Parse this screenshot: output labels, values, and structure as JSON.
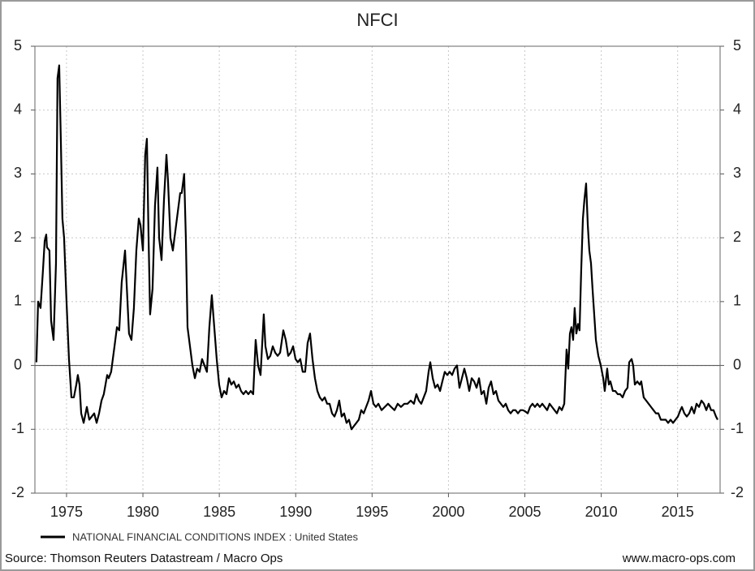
{
  "chart_data": {
    "type": "line",
    "title": "NFCI",
    "x": [
      1973.03,
      1973.14,
      1973.3,
      1973.46,
      1973.57,
      1973.67,
      1973.72,
      1973.88,
      1973.99,
      1974.15,
      1974.31,
      1974.41,
      1974.52,
      1974.63,
      1974.73,
      1974.84,
      1975.0,
      1975.16,
      1975.32,
      1975.48,
      1975.64,
      1975.74,
      1975.85,
      1975.96,
      1976.12,
      1976.33,
      1976.49,
      1976.65,
      1976.81,
      1976.97,
      1977.13,
      1977.29,
      1977.44,
      1977.66,
      1977.76,
      1977.92,
      1978.14,
      1978.3,
      1978.45,
      1978.61,
      1978.83,
      1978.99,
      1979.09,
      1979.25,
      1979.41,
      1979.57,
      1979.73,
      1979.84,
      1980.0,
      1980.15,
      1980.26,
      1980.37,
      1980.47,
      1980.63,
      1980.79,
      1980.95,
      1981.06,
      1981.22,
      1981.38,
      1981.54,
      1981.64,
      1981.8,
      1981.96,
      1982.12,
      1982.28,
      1982.44,
      1982.54,
      1982.7,
      1982.81,
      1982.92,
      1983.08,
      1983.24,
      1983.4,
      1983.55,
      1983.71,
      1983.87,
      1984.03,
      1984.19,
      1984.35,
      1984.51,
      1984.67,
      1984.83,
      1984.99,
      1985.15,
      1985.31,
      1985.47,
      1985.63,
      1985.79,
      1985.95,
      1986.11,
      1986.27,
      1986.42,
      1986.58,
      1986.74,
      1986.9,
      1987.06,
      1987.22,
      1987.38,
      1987.54,
      1987.7,
      1987.81,
      1987.91,
      1988.02,
      1988.18,
      1988.34,
      1988.5,
      1988.66,
      1988.82,
      1988.98,
      1989.19,
      1989.35,
      1989.51,
      1989.67,
      1989.83,
      1989.99,
      1990.14,
      1990.3,
      1990.46,
      1990.62,
      1990.78,
      1990.94,
      1991.1,
      1991.26,
      1991.42,
      1991.58,
      1991.74,
      1991.9,
      1992.06,
      1992.22,
      1992.38,
      1992.54,
      1992.7,
      1992.85,
      1993.01,
      1993.17,
      1993.33,
      1993.49,
      1993.65,
      1993.81,
      1993.97,
      1994.13,
      1994.29,
      1994.45,
      1994.61,
      1994.77,
      1994.93,
      1995.09,
      1995.25,
      1995.41,
      1995.62,
      1995.83,
      1996.04,
      1996.25,
      1996.47,
      1996.68,
      1996.89,
      1997.11,
      1997.32,
      1997.53,
      1997.74,
      1997.9,
      1998.06,
      1998.22,
      1998.38,
      1998.54,
      1998.7,
      1998.81,
      1998.97,
      1999.13,
      1999.29,
      1999.45,
      1999.6,
      1999.76,
      1999.92,
      2000.08,
      2000.24,
      2000.4,
      2000.56,
      2000.72,
      2000.88,
      2001.04,
      2001.2,
      2001.36,
      2001.52,
      2001.68,
      2001.84,
      2002.0,
      2002.16,
      2002.32,
      2002.48,
      2002.63,
      2002.79,
      2002.95,
      2003.11,
      2003.27,
      2003.43,
      2003.59,
      2003.75,
      2003.91,
      2004.07,
      2004.23,
      2004.39,
      2004.55,
      2004.71,
      2004.87,
      2005.03,
      2005.19,
      2005.34,
      2005.5,
      2005.66,
      2005.82,
      2005.98,
      2006.14,
      2006.3,
      2006.46,
      2006.62,
      2006.78,
      2006.94,
      2007.1,
      2007.26,
      2007.42,
      2007.58,
      2007.73,
      2007.84,
      2007.95,
      2008.05,
      2008.16,
      2008.26,
      2008.37,
      2008.48,
      2008.58,
      2008.69,
      2008.8,
      2008.9,
      2009.01,
      2009.12,
      2009.22,
      2009.33,
      2009.43,
      2009.54,
      2009.65,
      2009.81,
      2009.97,
      2010.13,
      2010.23,
      2010.39,
      2010.5,
      2010.6,
      2010.76,
      2010.92,
      2011.08,
      2011.24,
      2011.4,
      2011.56,
      2011.72,
      2011.83,
      2011.99,
      2012.09,
      2012.2,
      2012.36,
      2012.52,
      2012.62,
      2012.78,
      2012.94,
      2013.1,
      2013.26,
      2013.42,
      2013.58,
      2013.74,
      2013.9,
      2014.06,
      2014.22,
      2014.38,
      2014.54,
      2014.7,
      2014.86,
      2015.02,
      2015.18,
      2015.28,
      2015.44,
      2015.6,
      2015.76,
      2015.92,
      2016.08,
      2016.24,
      2016.4,
      2016.56,
      2016.72,
      2016.88,
      2017.03,
      2017.19,
      2017.35,
      2017.51,
      2017.62
    ],
    "series": [
      {
        "name": "NATIONAL FINANCIAL CONDITIONS INDEX : United States",
        "color": "#000000",
        "values": [
          0.05,
          1.0,
          0.9,
          1.5,
          1.95,
          2.05,
          1.85,
          1.8,
          0.7,
          0.4,
          1.6,
          4.5,
          4.7,
          3.5,
          2.3,
          2.0,
          1.0,
          0.1,
          -0.5,
          -0.5,
          -0.3,
          -0.15,
          -0.3,
          -0.75,
          -0.9,
          -0.65,
          -0.85,
          -0.8,
          -0.75,
          -0.9,
          -0.75,
          -0.55,
          -0.45,
          -0.15,
          -0.2,
          -0.1,
          0.3,
          0.6,
          0.55,
          1.3,
          1.8,
          1.0,
          0.5,
          0.4,
          0.9,
          1.8,
          2.3,
          2.2,
          1.8,
          3.3,
          3.55,
          2.0,
          0.8,
          1.2,
          2.5,
          3.1,
          2.0,
          1.65,
          2.6,
          3.3,
          2.9,
          2.0,
          1.8,
          2.1,
          2.4,
          2.7,
          2.7,
          3.0,
          2.0,
          0.6,
          0.3,
          0.0,
          -0.2,
          -0.05,
          -0.1,
          0.1,
          0.0,
          -0.1,
          0.6,
          1.1,
          0.6,
          0.1,
          -0.3,
          -0.5,
          -0.4,
          -0.45,
          -0.2,
          -0.3,
          -0.25,
          -0.35,
          -0.3,
          -0.4,
          -0.45,
          -0.4,
          -0.45,
          -0.4,
          -0.45,
          0.4,
          0.0,
          -0.15,
          0.35,
          0.8,
          0.3,
          0.1,
          0.15,
          0.3,
          0.2,
          0.15,
          0.2,
          0.55,
          0.4,
          0.15,
          0.2,
          0.3,
          0.1,
          0.05,
          0.1,
          -0.1,
          -0.1,
          0.35,
          0.5,
          0.1,
          -0.2,
          -0.4,
          -0.5,
          -0.55,
          -0.5,
          -0.6,
          -0.6,
          -0.75,
          -0.8,
          -0.7,
          -0.55,
          -0.8,
          -0.75,
          -0.9,
          -0.85,
          -1.0,
          -0.95,
          -0.9,
          -0.85,
          -0.7,
          -0.75,
          -0.65,
          -0.55,
          -0.4,
          -0.6,
          -0.65,
          -0.6,
          -0.7,
          -0.65,
          -0.6,
          -0.65,
          -0.7,
          -0.6,
          -0.65,
          -0.6,
          -0.6,
          -0.55,
          -0.6,
          -0.45,
          -0.55,
          -0.6,
          -0.5,
          -0.4,
          -0.1,
          0.05,
          -0.2,
          -0.35,
          -0.3,
          -0.4,
          -0.25,
          -0.1,
          -0.15,
          -0.1,
          -0.15,
          -0.05,
          0.0,
          -0.35,
          -0.2,
          -0.05,
          -0.2,
          -0.4,
          -0.2,
          -0.25,
          -0.35,
          -0.2,
          -0.45,
          -0.4,
          -0.6,
          -0.35,
          -0.25,
          -0.45,
          -0.4,
          -0.55,
          -0.6,
          -0.65,
          -0.6,
          -0.7,
          -0.75,
          -0.7,
          -0.7,
          -0.75,
          -0.7,
          -0.7,
          -0.72,
          -0.75,
          -0.65,
          -0.6,
          -0.65,
          -0.6,
          -0.65,
          -0.6,
          -0.65,
          -0.7,
          -0.6,
          -0.65,
          -0.7,
          -0.75,
          -0.65,
          -0.7,
          -0.6,
          0.25,
          -0.05,
          0.5,
          0.6,
          0.4,
          0.9,
          0.5,
          0.65,
          0.55,
          1.5,
          2.3,
          2.6,
          2.85,
          2.2,
          1.8,
          1.6,
          1.2,
          0.8,
          0.4,
          0.15,
          0.0,
          -0.2,
          -0.4,
          -0.05,
          -0.3,
          -0.25,
          -0.4,
          -0.4,
          -0.45,
          -0.45,
          -0.5,
          -0.4,
          -0.35,
          0.05,
          0.1,
          0.0,
          -0.3,
          -0.25,
          -0.3,
          -0.25,
          -0.5,
          -0.55,
          -0.6,
          -0.65,
          -0.7,
          -0.75,
          -0.75,
          -0.85,
          -0.85,
          -0.85,
          -0.9,
          -0.85,
          -0.9,
          -0.85,
          -0.8,
          -0.7,
          -0.65,
          -0.75,
          -0.8,
          -0.75,
          -0.65,
          -0.75,
          -0.6,
          -0.65,
          -0.55,
          -0.6,
          -0.7,
          -0.6,
          -0.7,
          -0.7,
          -0.8,
          -0.85
        ]
      }
    ],
    "xlim": [
      1972.93,
      2017.78
    ],
    "xticks": [
      1975,
      1980,
      1985,
      1990,
      1995,
      2000,
      2005,
      2010,
      2015
    ],
    "ylim": [
      -2,
      5
    ],
    "yticks": [
      -2,
      -1,
      0,
      1,
      2,
      3,
      4,
      5
    ],
    "grid": true,
    "source": "Source: Thomson Reuters Datastream / Macro Ops",
    "website": "www.macro-ops.com"
  }
}
